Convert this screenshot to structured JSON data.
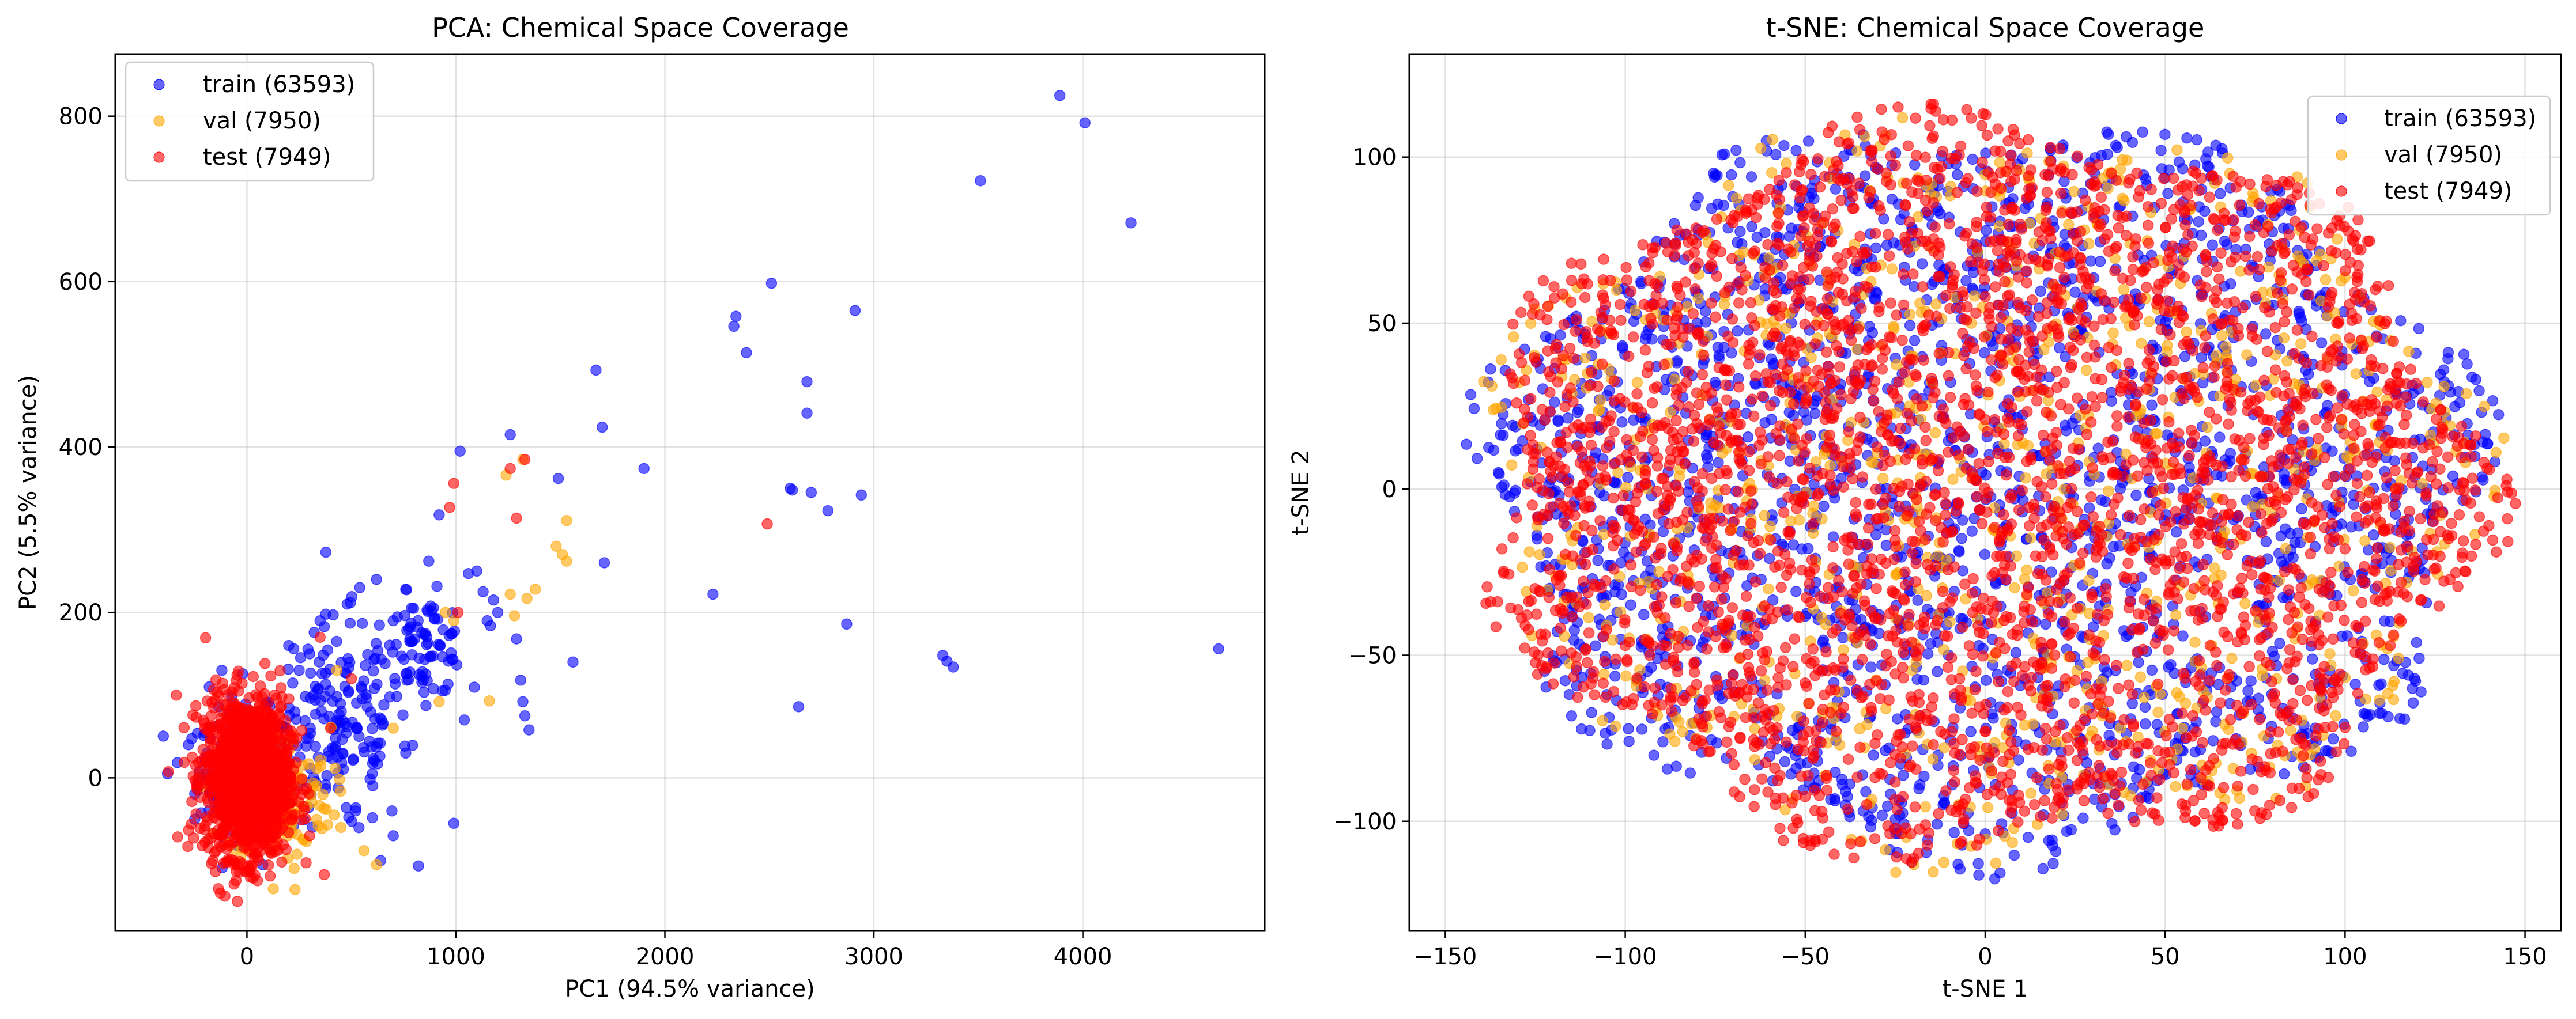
{
  "chart_data": [
    {
      "type": "scatter",
      "title": "PCA: Chemical Space Coverage",
      "xlabel": "PC1 (94.5% variance)",
      "ylabel": "PC2 (5.5% variance)",
      "xlim": [
        -630,
        4870
      ],
      "ylim": [
        -185,
        875
      ],
      "xticks": [
        0,
        1000,
        2000,
        3000,
        4000
      ],
      "yticks": [
        0,
        200,
        400,
        600,
        800
      ],
      "xtick_labels": [
        "0",
        "1000",
        "2000",
        "3000",
        "4000"
      ],
      "ytick_labels": [
        "0",
        "200",
        "400",
        "600",
        "800"
      ],
      "grid": true,
      "legend_position": "upper-left",
      "series": [
        {
          "name": "train (63593)",
          "color": "#0000ff",
          "alpha": 0.6,
          "clusters": [
            {
              "cx": 0,
              "cy": 10,
              "rx": 230,
              "ry": 70,
              "n": 300
            },
            {
              "cx": 450,
              "cy": 60,
              "rx": 330,
              "ry": 130,
              "n": 170
            },
            {
              "cx": 850,
              "cy": 160,
              "rx": 200,
              "ry": 60,
              "n": 80
            }
          ],
          "points": [
            [
              3890,
              825
            ],
            [
              4010,
              792
            ],
            [
              4230,
              671
            ],
            [
              3510,
              722
            ],
            [
              4650,
              156
            ],
            [
              2510,
              598
            ],
            [
              2340,
              558
            ],
            [
              2330,
              546
            ],
            [
              2390,
              514
            ],
            [
              2910,
              565
            ],
            [
              2680,
              479
            ],
            [
              2680,
              441
            ],
            [
              1670,
              493
            ],
            [
              1700,
              424
            ],
            [
              1260,
              415
            ],
            [
              1020,
              395
            ],
            [
              1900,
              374
            ],
            [
              1490,
              362
            ],
            [
              1710,
              260
            ],
            [
              2600,
              350
            ],
            [
              2610,
              348
            ],
            [
              2700,
              345
            ],
            [
              2940,
              342
            ],
            [
              2780,
              323
            ],
            [
              2230,
              222
            ],
            [
              2870,
              186
            ],
            [
              3330,
              148
            ],
            [
              3350,
              141
            ],
            [
              3380,
              134
            ],
            [
              2640,
              86
            ],
            [
              1560,
              140
            ],
            [
              1310,
              118
            ],
            [
              1320,
              92
            ],
            [
              1330,
              75
            ],
            [
              1350,
              58
            ],
            [
              1290,
              168
            ],
            [
              1180,
              215
            ],
            [
              1060,
              247
            ],
            [
              920,
              318
            ],
            [
              990,
              -55
            ],
            [
              1040,
              70
            ],
            [
              1100,
              250
            ],
            [
              1150,
              190
            ],
            [
              1130,
              225
            ],
            [
              1200,
              200
            ],
            [
              870,
              262
            ],
            [
              760,
              228
            ],
            [
              700,
              190
            ],
            [
              620,
              240
            ],
            [
              540,
              230
            ],
            [
              480,
              210
            ],
            [
              350,
              190
            ],
            [
              300,
              150
            ],
            [
              250,
              130
            ],
            [
              200,
              160
            ],
            [
              -120,
              130
            ],
            [
              -180,
              110
            ],
            [
              -380,
              5
            ],
            [
              -280,
              40
            ],
            [
              -250,
              -50
            ],
            [
              700,
              -70
            ],
            [
              640,
              -100
            ],
            [
              760,
              30
            ],
            [
              600,
              5
            ],
            [
              520,
              -40
            ]
          ]
        },
        {
          "name": "val (7950)",
          "color": "#ffa500",
          "alpha": 0.6,
          "clusters": [
            {
              "cx": 150,
              "cy": -20,
              "rx": 250,
              "ry": 80,
              "n": 180
            }
          ],
          "points": [
            [
              1240,
              366
            ],
            [
              1320,
              385
            ],
            [
              1480,
              280
            ],
            [
              1510,
              270
            ],
            [
              1530,
              262
            ],
            [
              1530,
              311
            ],
            [
              1380,
              228
            ],
            [
              1340,
              217
            ],
            [
              1260,
              222
            ],
            [
              1280,
              196
            ],
            [
              920,
              92
            ],
            [
              1160,
              93
            ],
            [
              990,
              190
            ],
            [
              950,
              200
            ],
            [
              230,
              -135
            ],
            [
              620,
              -105
            ],
            [
              560,
              -88
            ],
            [
              450,
              -60
            ],
            [
              700,
              60
            ],
            [
              430,
              130
            ]
          ]
        },
        {
          "name": "test (7949)",
          "color": "#ff0000",
          "alpha": 0.6,
          "clusters": [
            {
              "cx": 0,
              "cy": 0,
              "rx": 200,
              "ry": 95,
              "n": 1400
            }
          ],
          "points": [
            [
              1260,
              374
            ],
            [
              1330,
              385
            ],
            [
              990,
              356
            ],
            [
              970,
              327
            ],
            [
              1290,
              314
            ],
            [
              2490,
              307
            ],
            [
              370,
              -117
            ],
            [
              1010,
              200
            ],
            [
              350,
              170
            ],
            [
              500,
              120
            ],
            [
              400,
              60
            ],
            [
              300,
              -70
            ]
          ]
        }
      ]
    },
    {
      "type": "scatter",
      "title": "t-SNE: Chemical Space Coverage",
      "xlabel": "t-SNE 1",
      "ylabel": "t-SNE 2",
      "xlim": [
        -160,
        160
      ],
      "ylim": [
        -133,
        131
      ],
      "xticks": [
        -150,
        -100,
        -50,
        0,
        50,
        100,
        150
      ],
      "yticks": [
        -100,
        -50,
        0,
        50,
        100
      ],
      "xtick_labels": [
        "−150",
        "−100",
        "−50",
        "0",
        "50",
        "100",
        "150"
      ],
      "ytick_labels": [
        "−100",
        "−50",
        "0",
        "50",
        "100"
      ],
      "grid": true,
      "legend_position": "upper-right",
      "shape": {
        "cx": 0,
        "cy": 0,
        "rx": 148,
        "ry": 118
      },
      "series": [
        {
          "name": "train (63593)",
          "color": "#0000ff",
          "alpha": 0.6,
          "n": 2200
        },
        {
          "name": "val (7950)",
          "color": "#ffa500",
          "alpha": 0.6,
          "n": 900
        },
        {
          "name": "test (7949)",
          "color": "#ff0000",
          "alpha": 0.6,
          "n": 3200
        }
      ]
    }
  ]
}
